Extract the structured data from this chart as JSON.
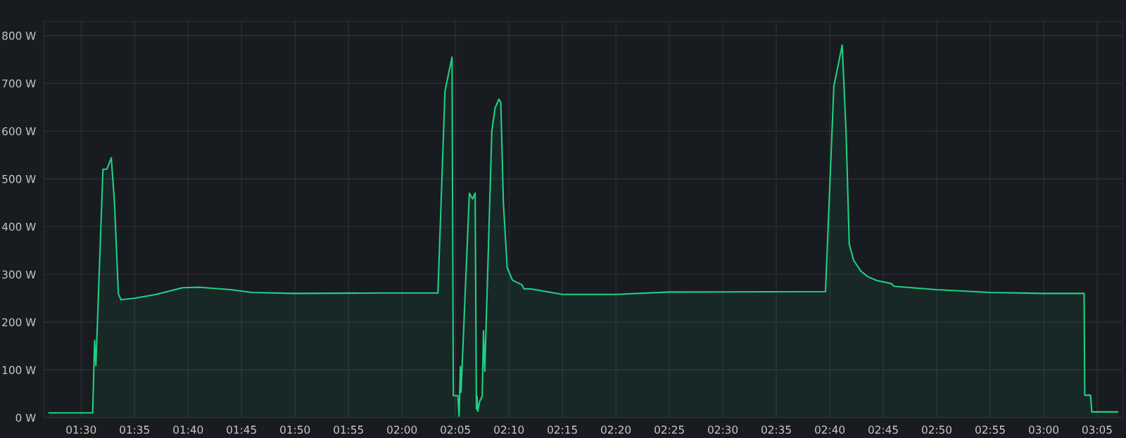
{
  "chart_data": {
    "type": "area",
    "x": [
      1.45,
      1.518,
      1.521,
      1.523,
      1.534,
      1.54,
      1.547,
      1.552,
      1.558,
      1.562,
      1.583,
      1.617,
      1.658,
      1.683,
      1.733,
      1.767,
      1.833,
      1.967,
      2.056,
      2.067,
      2.078,
      2.08,
      2.087,
      2.089,
      2.091,
      2.092,
      2.105,
      2.11,
      2.114,
      2.116,
      2.117,
      2.118,
      2.121,
      2.125,
      2.127,
      2.129,
      2.14,
      2.145,
      2.151,
      2.154,
      2.158,
      2.164,
      2.172,
      2.187,
      2.19,
      2.203,
      2.25,
      2.333,
      2.417,
      2.66,
      2.673,
      2.686,
      2.692,
      2.697,
      2.704,
      2.715,
      2.726,
      2.74,
      2.762,
      2.767,
      2.833,
      2.917,
      3.0,
      3.063,
      3.064,
      3.073,
      3.075,
      3.115
    ],
    "series": [
      {
        "color": "#1fd084",
        "values": [
          10,
          10,
          162,
          109,
          520,
          520,
          544,
          450,
          260,
          247,
          250,
          258,
          272,
          273,
          268,
          262,
          260,
          261,
          261,
          684,
          755,
          46,
          46,
          3,
          107,
          53,
          470,
          458,
          470,
          18,
          45,
          13,
          34,
          45,
          182,
          97,
          600,
          648,
          667,
          660,
          450,
          314,
          288,
          278,
          270,
          269,
          258,
          258,
          263,
          264,
          694,
          780,
          600,
          363,
          329,
          307,
          295,
          287,
          281,
          275,
          268,
          262,
          260,
          260,
          47,
          47,
          12,
          12
        ]
      }
    ],
    "xlim": [
      1.442,
      3.123
    ],
    "xticks": [
      {
        "value": 1.5,
        "label": "01:30"
      },
      {
        "value": 1.5833,
        "label": "01:35"
      },
      {
        "value": 1.6667,
        "label": "01:40"
      },
      {
        "value": 1.75,
        "label": "01:45"
      },
      {
        "value": 1.8333,
        "label": "01:50"
      },
      {
        "value": 1.9167,
        "label": "01:55"
      },
      {
        "value": 2.0,
        "label": "02:00"
      },
      {
        "value": 2.0833,
        "label": "02:05"
      },
      {
        "value": 2.1667,
        "label": "02:10"
      },
      {
        "value": 2.25,
        "label": "02:15"
      },
      {
        "value": 2.3333,
        "label": "02:20"
      },
      {
        "value": 2.4167,
        "label": "02:25"
      },
      {
        "value": 2.5,
        "label": "02:30"
      },
      {
        "value": 2.5833,
        "label": "02:35"
      },
      {
        "value": 2.6667,
        "label": "02:40"
      },
      {
        "value": 2.75,
        "label": "02:45"
      },
      {
        "value": 2.8333,
        "label": "02:50"
      },
      {
        "value": 2.9167,
        "label": "02:55"
      },
      {
        "value": 3.0,
        "label": "03:00"
      },
      {
        "value": 3.0833,
        "label": "03:05"
      }
    ],
    "ylim": [
      0,
      830
    ],
    "yticks": [
      {
        "value": 0,
        "label": "0 W"
      },
      {
        "value": 100,
        "label": "100 W"
      },
      {
        "value": 200,
        "label": "200 W"
      },
      {
        "value": 300,
        "label": "300 W"
      },
      {
        "value": 400,
        "label": "400 W"
      },
      {
        "value": 500,
        "label": "500 W"
      },
      {
        "value": 600,
        "label": "600 W"
      },
      {
        "value": 700,
        "label": "700 W"
      },
      {
        "value": 800,
        "label": "800 W"
      }
    ],
    "grid": true
  }
}
